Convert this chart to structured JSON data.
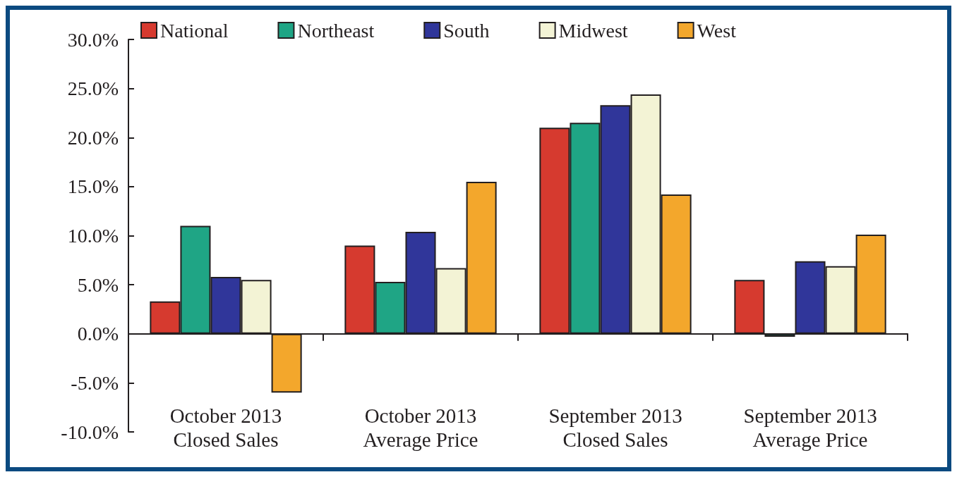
{
  "chart_data": {
    "type": "bar",
    "categories": [
      "October 2013\nClosed Sales",
      "October 2013\nAverage Price",
      "September 2013\nClosed Sales",
      "September 2013\nAverage Price"
    ],
    "series": [
      {
        "name": "National",
        "color": "#d63a2f",
        "values": [
          3.3,
          9.0,
          21.0,
          5.5
        ]
      },
      {
        "name": "Northeast",
        "color": "#1fa585",
        "values": [
          11.0,
          5.3,
          21.5,
          -0.3
        ]
      },
      {
        "name": "South",
        "color": "#30369a",
        "values": [
          5.8,
          10.4,
          23.3,
          7.4
        ]
      },
      {
        "name": "Midwest",
        "color": "#f3f3d5",
        "values": [
          5.5,
          6.7,
          24.4,
          6.9
        ]
      },
      {
        "name": "West",
        "color": "#f3a72c",
        "values": [
          -6.0,
          15.5,
          14.2,
          10.1
        ]
      }
    ],
    "ylim": [
      -10,
      30
    ],
    "yticks": [
      {
        "value": -10,
        "label": "-10.0%"
      },
      {
        "value": -5,
        "label": "-5.0%"
      },
      {
        "value": 0,
        "label": "0.0%"
      },
      {
        "value": 5,
        "label": "5.0%"
      },
      {
        "value": 10,
        "label": "10.0%"
      },
      {
        "value": 15,
        "label": "15.0%"
      },
      {
        "value": 20,
        "label": "20.0%"
      },
      {
        "value": 25,
        "label": "25.0%"
      },
      {
        "value": 30,
        "label": "30.0%"
      }
    ],
    "legend": "top"
  }
}
